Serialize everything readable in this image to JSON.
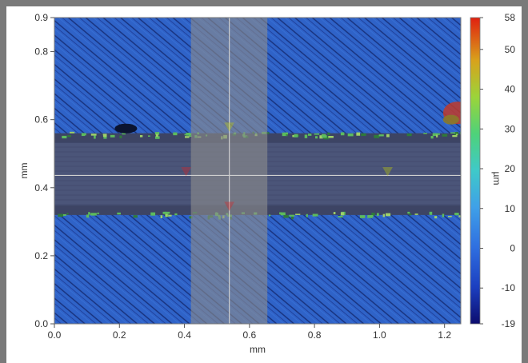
{
  "chart_data": {
    "type": "heatmap",
    "xlabel": "mm",
    "ylabel": "mm",
    "colorbar_label": "µm",
    "xlim": [
      0.0,
      1.25
    ],
    "ylim": [
      0.0,
      0.9
    ],
    "xticks": [
      "0.0",
      "0.2",
      "0.4",
      "0.6",
      "0.8",
      "1.0",
      "1.2"
    ],
    "xtick_values": [
      0.0,
      0.2,
      0.4,
      0.6,
      0.8,
      1.0,
      1.2
    ],
    "yticks": [
      "0.0",
      "0.2",
      "0.4",
      "0.6",
      "0.8",
      "0.9"
    ],
    "ytick_values": [
      0.0,
      0.2,
      0.4,
      0.6,
      0.8,
      0.9
    ],
    "colorbar_ticks": [
      "58",
      "50",
      "40",
      "30",
      "20",
      "10",
      "0",
      "-10",
      "-19"
    ],
    "colorbar_values": [
      58,
      50,
      40,
      30,
      20,
      10,
      0,
      -10,
      -19
    ],
    "colorbar_range": [
      -19,
      58
    ],
    "colors": {
      "surface": "#2f63c8",
      "groove": "#4b5579",
      "selection": "#8c8c8c",
      "cursor_line": "#cfcfcf",
      "edge_green": "#5dbb5d",
      "hotspot": "#c0392b"
    },
    "groove_band_mm": [
      0.32,
      0.56
    ],
    "selection_band_x_mm": [
      0.42,
      0.655
    ],
    "cursor_x_mm": 0.538,
    "cursor_y_mm": 0.436,
    "markers": [
      {
        "x": 0.538,
        "y": 0.578,
        "color": "#c8d400"
      },
      {
        "x": 0.405,
        "y": 0.447,
        "color": "#e02020"
      },
      {
        "x": 1.025,
        "y": 0.447,
        "color": "#c8d400"
      },
      {
        "x": 0.538,
        "y": 0.345,
        "color": "#e02020"
      }
    ]
  }
}
